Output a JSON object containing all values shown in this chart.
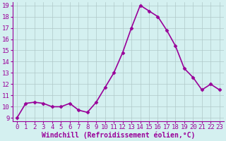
{
  "x": [
    0,
    1,
    2,
    3,
    4,
    5,
    6,
    7,
    8,
    9,
    10,
    11,
    12,
    13,
    14,
    15,
    16,
    17,
    18,
    19,
    20,
    21,
    22,
    23
  ],
  "y": [
    9.0,
    10.3,
    10.4,
    10.3,
    10.0,
    10.0,
    10.3,
    9.7,
    9.5,
    10.4,
    11.7,
    13.0,
    14.8,
    17.0,
    19.0,
    18.5,
    18.0,
    16.8,
    15.4,
    13.4,
    12.6,
    11.5,
    12.0,
    11.5
  ],
  "line_color": "#990099",
  "marker": "D",
  "marker_size": 2.5,
  "xlabel": "Windchill (Refroidissement éolien,°C)",
  "ylim": [
    9,
    19
  ],
  "xlim": [
    -0.5,
    23.5
  ],
  "yticks": [
    9,
    10,
    11,
    12,
    13,
    14,
    15,
    16,
    17,
    18,
    19
  ],
  "xticks": [
    0,
    1,
    2,
    3,
    4,
    5,
    6,
    7,
    8,
    9,
    10,
    11,
    12,
    13,
    14,
    15,
    16,
    17,
    18,
    19,
    20,
    21,
    22,
    23
  ],
  "background_color": "#d4f0f0",
  "grid_color": "#b0c8c8",
  "xlabel_color": "#990099",
  "tick_color": "#990099",
  "tick_fontsize": 6.5,
  "xlabel_fontsize": 7.0,
  "linewidth": 1.2
}
